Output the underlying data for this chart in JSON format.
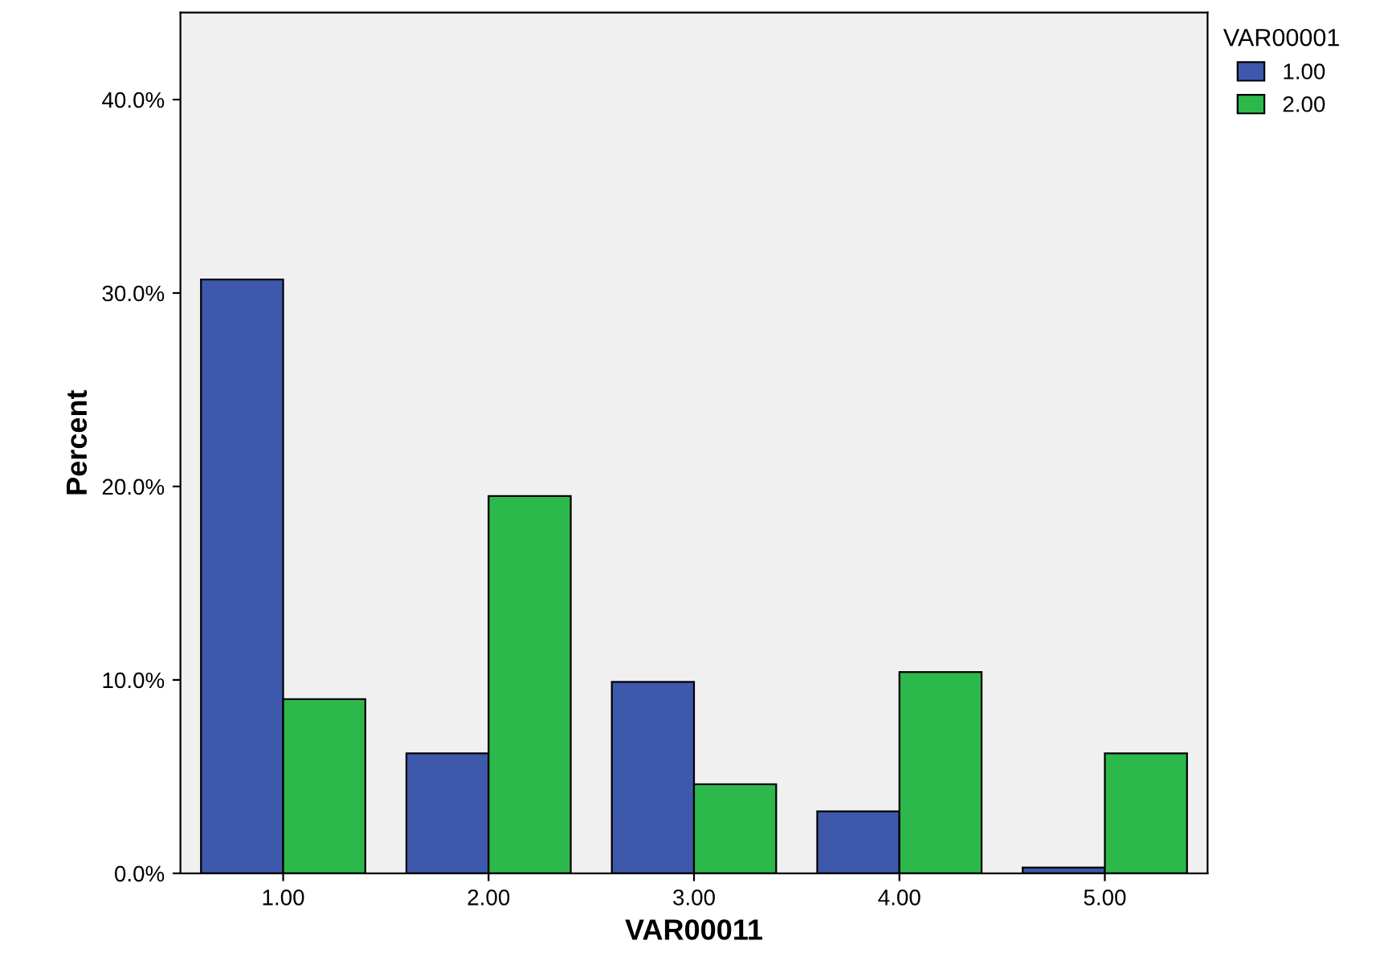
{
  "chart_data": {
    "type": "bar",
    "xlabel": "VAR00011",
    "ylabel": "Percent",
    "legend_title": "VAR00001",
    "categories": [
      "1.00",
      "2.00",
      "3.00",
      "4.00",
      "5.00"
    ],
    "series": [
      {
        "name": "1.00",
        "color": "#3e58ac",
        "values": [
          30.7,
          6.2,
          9.9,
          3.2,
          0.3
        ]
      },
      {
        "name": "2.00",
        "color": "#2db84b",
        "values": [
          9.0,
          19.5,
          4.6,
          10.4,
          6.2
        ]
      }
    ],
    "ylim": [
      0,
      44.5
    ],
    "yticks": [
      {
        "value": 0,
        "label": "0.0%"
      },
      {
        "value": 10,
        "label": "10.0%"
      },
      {
        "value": 20,
        "label": "20.0%"
      },
      {
        "value": 30,
        "label": "30.0%"
      },
      {
        "value": 40,
        "label": "40.0%"
      }
    ],
    "grid": false,
    "legend": "top right"
  }
}
